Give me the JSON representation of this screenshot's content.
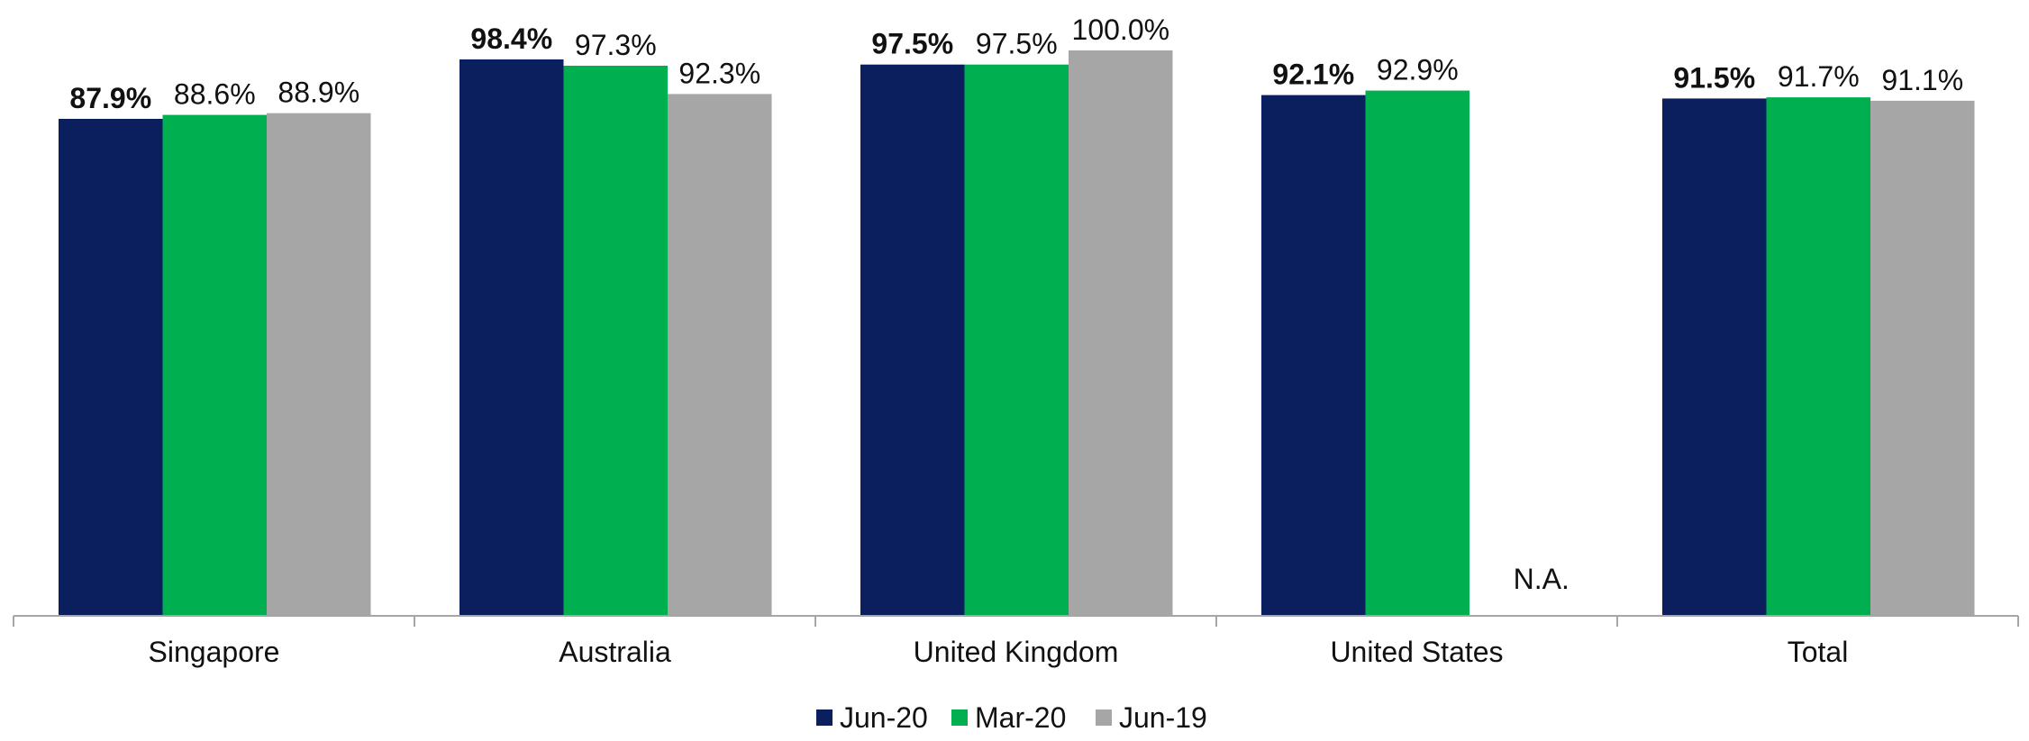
{
  "chart_data": {
    "type": "bar",
    "categories": [
      "Singapore",
      "Australia",
      "United Kingdom",
      "United States",
      "Total"
    ],
    "series": [
      {
        "name": "Jun-20",
        "color": "#0b1f5e",
        "values": [
          87.9,
          98.4,
          97.5,
          92.1,
          91.5
        ],
        "labels": [
          "87.9%",
          "98.4%",
          "97.5%",
          "92.1%",
          "91.5%"
        ],
        "bold": true
      },
      {
        "name": "Mar-20",
        "color": "#00b050",
        "values": [
          88.6,
          97.3,
          97.5,
          92.9,
          91.7
        ],
        "labels": [
          "88.6%",
          "97.3%",
          "97.5%",
          "92.9%",
          "91.7%"
        ],
        "bold": false
      },
      {
        "name": "Jun-19",
        "color": "#a6a6a6",
        "values": [
          88.9,
          92.3,
          100.0,
          null,
          91.1
        ],
        "labels": [
          "88.9%",
          "92.3%",
          "100.0%",
          "N.A.",
          "91.1%"
        ],
        "bold": false
      }
    ],
    "ylim": [
      0,
      100
    ],
    "grid": false,
    "legend": "bottom-center"
  }
}
